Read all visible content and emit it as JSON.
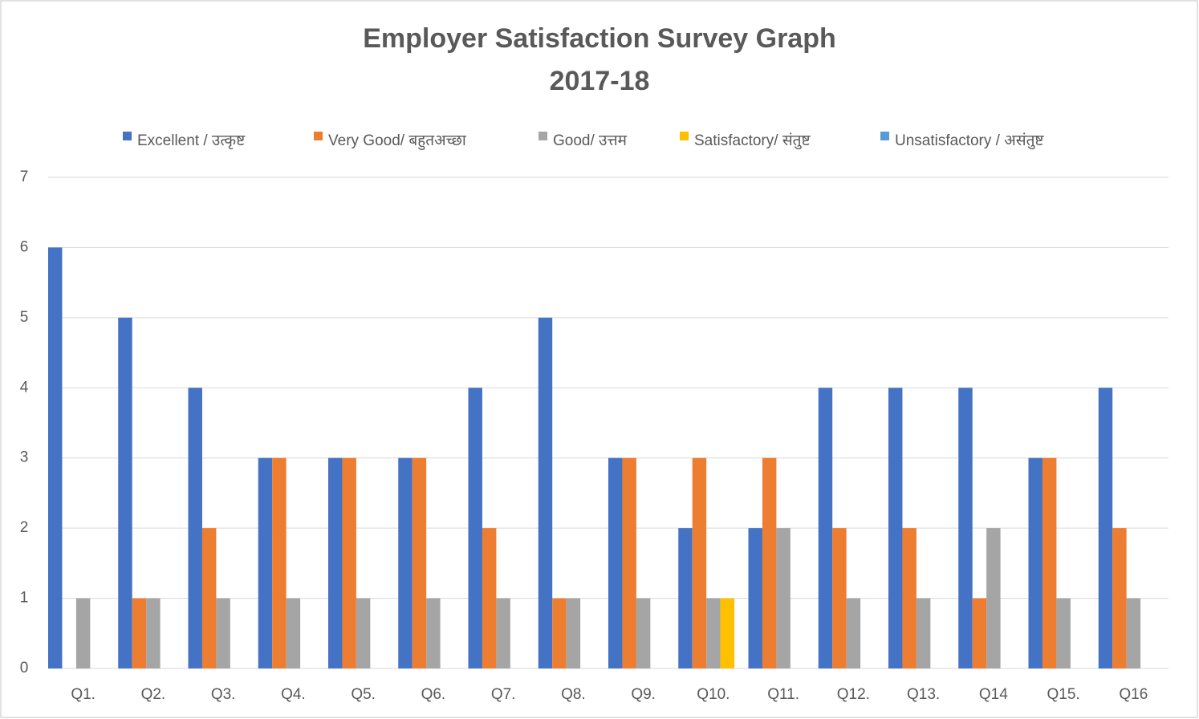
{
  "chart_data": {
    "type": "bar",
    "title": "Employer Satisfaction Survey Graph",
    "subtitle": "2017-18",
    "categories": [
      "Q1.",
      "Q2.",
      "Q3.",
      "Q4.",
      "Q5.",
      "Q6.",
      "Q7.",
      "Q8.",
      "Q9.",
      "Q10.",
      "Q11.",
      "Q12.",
      "Q13.",
      "Q14",
      "Q15.",
      "Q16"
    ],
    "series": [
      {
        "name": "Excellent / उत्कृष्ट",
        "color": "#4472c4",
        "values": [
          6,
          5,
          4,
          3,
          3,
          3,
          4,
          5,
          3,
          2,
          2,
          4,
          4,
          4,
          3,
          4
        ]
      },
      {
        "name": "Very Good/ बहुतअच्छा",
        "color": "#ed7d31",
        "values": [
          0,
          1,
          2,
          3,
          3,
          3,
          2,
          1,
          3,
          3,
          3,
          2,
          2,
          1,
          3,
          2
        ]
      },
      {
        "name": "Good/ उत्तम",
        "color": "#a5a5a5",
        "values": [
          1,
          1,
          1,
          1,
          1,
          1,
          1,
          1,
          1,
          1,
          2,
          1,
          1,
          2,
          1,
          1
        ]
      },
      {
        "name": "Satisfactory/ संतुष्ट",
        "color": "#ffc000",
        "values": [
          0,
          0,
          0,
          0,
          0,
          0,
          0,
          0,
          0,
          1,
          0,
          0,
          0,
          0,
          0,
          0
        ]
      },
      {
        "name": "Unsatisfactory / असंतुष्ट",
        "color": "#5b9bd5",
        "values": [
          0,
          0,
          0,
          0,
          0,
          0,
          0,
          0,
          0,
          0,
          0,
          0,
          0,
          0,
          0,
          0
        ]
      }
    ],
    "ylim": [
      0,
      7
    ],
    "yticks": [
      0,
      1,
      2,
      3,
      4,
      5,
      6,
      7
    ],
    "grid": true,
    "legend": "top"
  }
}
